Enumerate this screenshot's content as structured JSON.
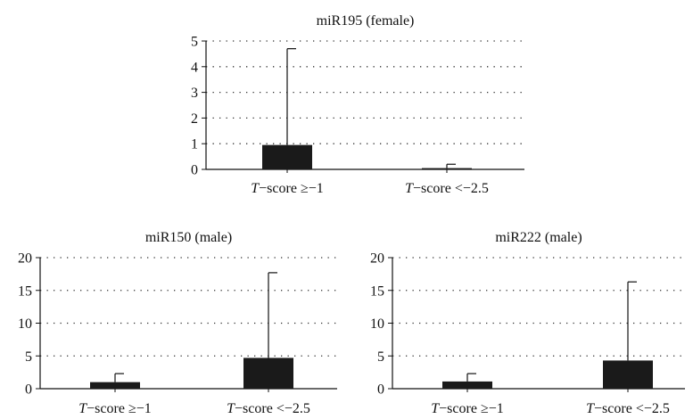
{
  "chart_data": [
    {
      "type": "bar",
      "title": "miR195 (female)",
      "categories": [
        "−score ≥−1",
        "−score <−2.5"
      ],
      "category_prefix": "T",
      "values": [
        0.95,
        0.05
      ],
      "error_upper": [
        4.7,
        0.2
      ],
      "ylim": [
        0,
        5
      ],
      "yticks": [
        "0",
        "1",
        "2",
        "3",
        "4",
        "5"
      ],
      "grid": "dotted horizontal"
    },
    {
      "type": "bar",
      "title": "miR150 (male)",
      "categories": [
        "−score ≥−1",
        "−score <−2.5"
      ],
      "category_prefix": "T",
      "values": [
        1.0,
        4.7
      ],
      "error_upper": [
        2.3,
        17.7
      ],
      "ylim": [
        0,
        20
      ],
      "yticks": [
        "0",
        "5",
        "10",
        "15",
        "20"
      ],
      "grid": "dotted horizontal"
    },
    {
      "type": "bar",
      "title": "miR222 (male)",
      "categories": [
        "−score ≥−1",
        "−score <−2.5"
      ],
      "category_prefix": "T",
      "values": [
        1.1,
        4.3
      ],
      "error_upper": [
        2.3,
        16.3
      ],
      "ylim": [
        0,
        20
      ],
      "yticks": [
        "0",
        "5",
        "10",
        "15",
        "20"
      ],
      "grid": "dotted horizontal"
    }
  ]
}
